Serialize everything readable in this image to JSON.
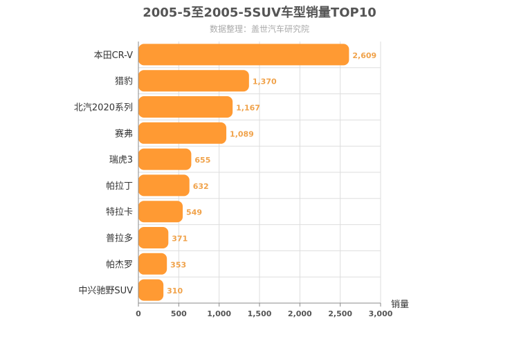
{
  "chart_data": {
    "type": "bar",
    "orientation": "horizontal",
    "title": "2005-5至2005-5SUV车型销量TOP10",
    "subtitle": "数据整理：盖世汽车研究院",
    "categories": [
      "本田CR-V",
      "猎豹",
      "北汽2020系列",
      "赛弗",
      "瑞虎3",
      "帕拉丁",
      "特拉卡",
      "普拉多",
      "帕杰罗",
      "中兴驰野SUV"
    ],
    "values": [
      2609,
      1370,
      1167,
      1089,
      655,
      632,
      549,
      371,
      353,
      310
    ],
    "value_labels": [
      "2,609",
      "1,370",
      "1,167",
      "1,089",
      "655",
      "632",
      "549",
      "371",
      "353",
      "310"
    ],
    "xlabel": "销量",
    "ylabel": "",
    "xlim": [
      0,
      3000
    ],
    "ticks": [
      0,
      500,
      1000,
      1500,
      2000,
      2500,
      3000
    ],
    "tick_labels": [
      "0",
      "500",
      "1,000",
      "1,500",
      "2,000",
      "2,500",
      "3,000"
    ],
    "grid": true,
    "bar_color": "#ff9a33",
    "label_color": "#f0a24a"
  }
}
